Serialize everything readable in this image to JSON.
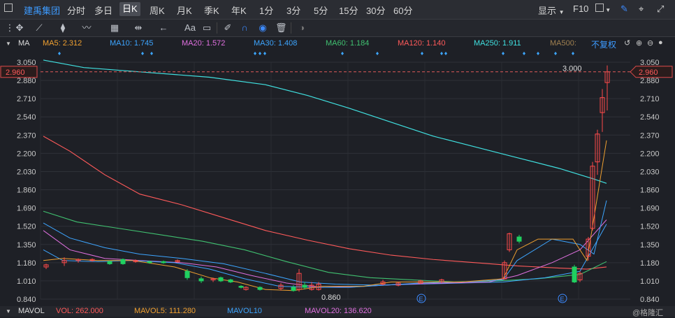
{
  "toolbar": {
    "stock_name": "建禹集团",
    "periods": [
      "分时",
      "多日",
      "日K",
      "周K",
      "月K",
      "季K",
      "年K",
      "1分",
      "3分",
      "5分",
      "15分",
      "30分",
      "60分"
    ],
    "active_period": "日K",
    "display_label": "显示",
    "f10_label": "F10"
  },
  "drawtools": {
    "font_label": "Aa"
  },
  "ma": {
    "label": "MA",
    "items": [
      {
        "text": "MA5: 2.312",
        "color": "#f0a030"
      },
      {
        "text": "MA10: 1.745",
        "color": "#3da5ff"
      },
      {
        "text": "MA20: 1.572",
        "color": "#e070e0"
      },
      {
        "text": "MA30: 1.408",
        "color": "#3da5ff"
      },
      {
        "text": "MA60: 1.184",
        "color": "#40c070"
      },
      {
        "text": "MA120: 1.140",
        "color": "#ff5a5a"
      },
      {
        "text": "MA250: 1.911",
        "color": "#40e0e0"
      },
      {
        "text": "MA500:",
        "color": "#a08050"
      }
    ],
    "restore_label": "不复权"
  },
  "chart_data": {
    "type": "candlestick",
    "y_ticks": [
      "3.050",
      "2.880",
      "2.710",
      "2.540",
      "2.370",
      "2.200",
      "2.030",
      "1.860",
      "1.690",
      "1.520",
      "1.350",
      "1.180",
      "1.010",
      "0.840"
    ],
    "ylim": [
      0.84,
      3.05
    ],
    "current_price": "2.960",
    "high_label": "3.000",
    "low_label": "0.860",
    "event_marker": "E",
    "colors": {
      "up": "#ff4a4a",
      "down": "#20d060",
      "ma5": "#f0a030",
      "ma10": "#3da5ff",
      "ma20": "#e070e0",
      "ma30": "#3da5ff",
      "ma60": "#40c070",
      "ma120": "#ff5a5a",
      "ma250": "#40e0e0"
    }
  },
  "volume": {
    "label": "MAVOL",
    "vol": "VOL: 262.000",
    "mavol5": "MAVOL5: 111.280",
    "mavol10": "MAVOL10",
    "mavol20": "MAVOL20: 136.620",
    "watermark": "@格隆汇"
  }
}
